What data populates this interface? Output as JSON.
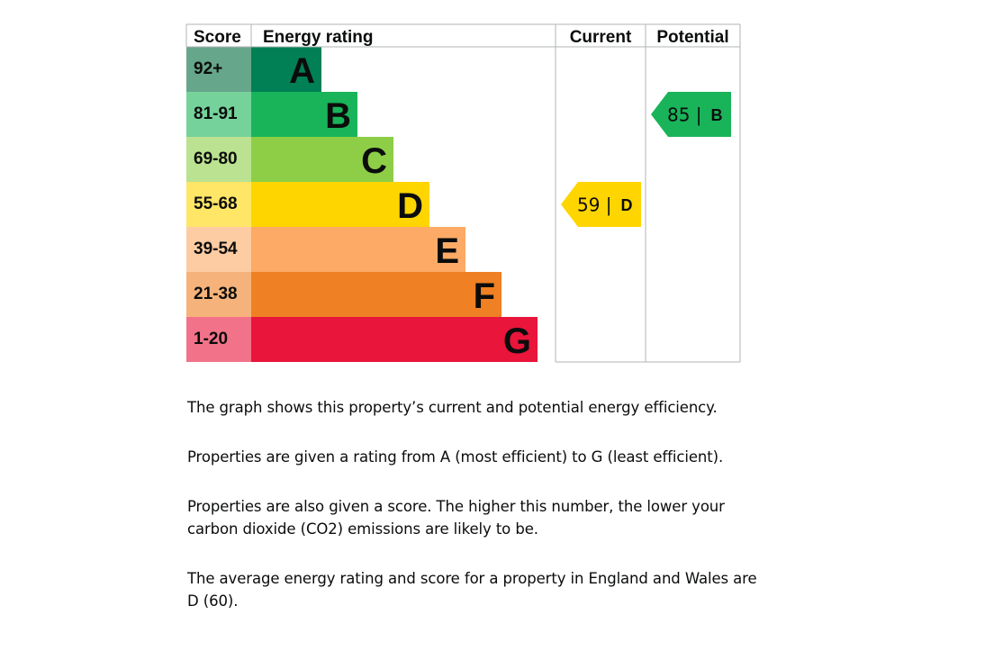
{
  "chart_data": {
    "type": "bar",
    "headers": {
      "score": "Score",
      "rating": "Energy rating",
      "current": "Current",
      "potential": "Potential"
    },
    "bands": [
      {
        "band": "A",
        "range": "92+",
        "color": "#008054",
        "score_color": "#66a68a"
      },
      {
        "band": "B",
        "range": "81-91",
        "color": "#19b459",
        "score_color": "#75d29b"
      },
      {
        "band": "C",
        "range": "69-80",
        "color": "#8dce46",
        "score_color": "#bbe290"
      },
      {
        "band": "D",
        "range": "55-68",
        "color": "#ffd500",
        "score_color": "#ffe666"
      },
      {
        "band": "E",
        "range": "39-54",
        "color": "#fcaa65",
        "score_color": "#fdcca3"
      },
      {
        "band": "F",
        "range": "21-38",
        "color": "#ef8023",
        "score_color": "#f5b37b"
      },
      {
        "band": "G",
        "range": "1-20",
        "color": "#e9153b",
        "score_color": "#f27389"
      }
    ],
    "current": {
      "score": 59,
      "band": "D",
      "label": "59 |",
      "color": "#ffd500"
    },
    "potential": {
      "score": 85,
      "band": "B",
      "label": "85 |",
      "color": "#19b459"
    }
  },
  "text": {
    "p1": "The graph shows this property’s current and potential energy efficiency.",
    "p2": "Properties are given a rating from A (most efficient) to G (least efficient).",
    "p3": "Properties are also given a score. The higher this number, the lower your carbon dioxide (CO2) emissions are likely to be.",
    "p4": "The average energy rating and score for a property in England and Wales are D (60)."
  }
}
